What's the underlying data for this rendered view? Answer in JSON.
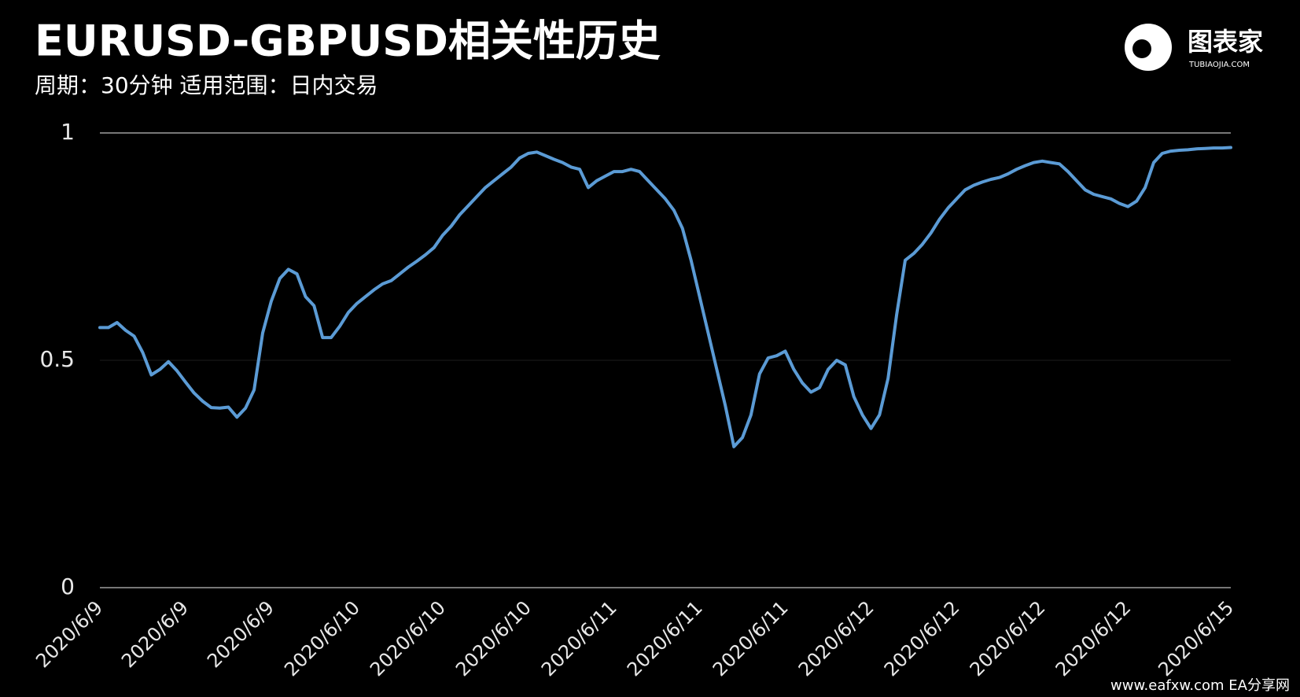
{
  "chart_data": {
    "type": "line",
    "title": "EURUSD-GBPUSD相关性历史",
    "subtitle": "周期：30分钟  适用范围：日内交易",
    "logo": "图表家",
    "logo_sub": "TUBIAOJIA.COM",
    "watermark": "www.eafxw.com   EA分享网",
    "categories": [
      "2020/6/9",
      null,
      null,
      null,
      null,
      null,
      null,
      null,
      null,
      null,
      "2020/6/9",
      null,
      null,
      null,
      null,
      null,
      null,
      null,
      null,
      null,
      "2020/6/9",
      null,
      null,
      null,
      null,
      null,
      null,
      null,
      null,
      null,
      "2020/6/10",
      null,
      null,
      null,
      null,
      null,
      null,
      null,
      null,
      null,
      "2020/6/10",
      null,
      null,
      null,
      null,
      null,
      null,
      null,
      null,
      null,
      "2020/6/10",
      null,
      null,
      null,
      null,
      null,
      null,
      null,
      null,
      null,
      "2020/6/11",
      null,
      null,
      null,
      null,
      null,
      null,
      null,
      null,
      null,
      "2020/6/11",
      null,
      null,
      null,
      null,
      null,
      null,
      null,
      null,
      null,
      "2020/6/11",
      null,
      null,
      null,
      null,
      null,
      null,
      null,
      null,
      null,
      "2020/6/12",
      null,
      null,
      null,
      null,
      null,
      null,
      null,
      null,
      null,
      "2020/6/12",
      null,
      null,
      null,
      null,
      null,
      null,
      null,
      null,
      null,
      "2020/6/12",
      null,
      null,
      null,
      null,
      null,
      null,
      null,
      null,
      null,
      "2020/6/12",
      null,
      null,
      null,
      null,
      null,
      null,
      null,
      null,
      null,
      null,
      null,
      "2020/6/15"
    ],
    "series": [
      {
        "name": "EURUSD-GBPUSD",
        "color": "#5b9bd5",
        "values": [
          0.572,
          0.572,
          0.583,
          0.566,
          0.553,
          0.517,
          0.468,
          0.48,
          0.497,
          0.477,
          0.452,
          0.428,
          0.41,
          0.396,
          0.395,
          0.397,
          0.375,
          0.395,
          0.435,
          0.56,
          0.63,
          0.68,
          0.7,
          0.69,
          0.64,
          0.62,
          0.55,
          0.55,
          0.575,
          0.605,
          0.625,
          0.64,
          0.655,
          0.668,
          0.675,
          0.69,
          0.705,
          0.718,
          0.732,
          0.748,
          0.775,
          0.795,
          0.82,
          0.84,
          0.86,
          0.88,
          0.895,
          0.91,
          0.925,
          0.945,
          0.955,
          0.958,
          0.95,
          0.942,
          0.935,
          0.925,
          0.92,
          0.88,
          0.895,
          0.905,
          0.915,
          0.915,
          0.92,
          0.915,
          0.895,
          0.875,
          0.855,
          0.83,
          0.79,
          0.72,
          0.64,
          0.56,
          0.48,
          0.4,
          0.31,
          0.33,
          0.38,
          0.47,
          0.505,
          0.51,
          0.52,
          0.48,
          0.45,
          0.43,
          0.44,
          0.48,
          0.5,
          0.49,
          0.42,
          0.38,
          0.35,
          0.38,
          0.46,
          0.6,
          0.72,
          0.735,
          0.755,
          0.78,
          0.81,
          0.835,
          0.855,
          0.875,
          0.885,
          0.892,
          0.898,
          0.902,
          0.91,
          0.92,
          0.928,
          0.935,
          0.938,
          0.935,
          0.932,
          0.915,
          0.895,
          0.875,
          0.865,
          0.86,
          0.855,
          0.845,
          0.838,
          0.85,
          0.88,
          0.935,
          0.955,
          0.96,
          0.962,
          0.963,
          0.965,
          0.966,
          0.967,
          0.967,
          0.968
        ]
      }
    ],
    "ylim": [
      0,
      1
    ],
    "yticks": [
      0,
      0.5,
      1
    ],
    "grid": true
  }
}
